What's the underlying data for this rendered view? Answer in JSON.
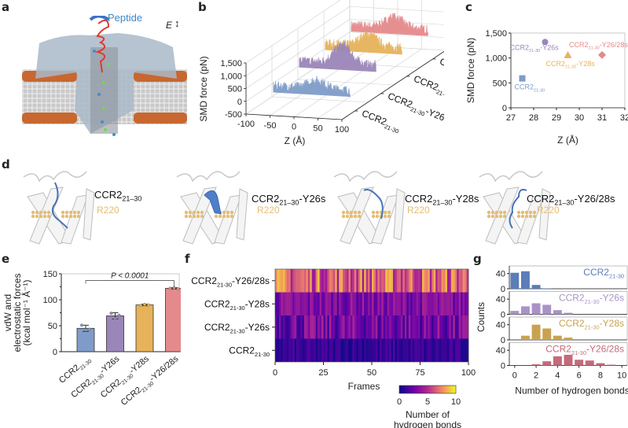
{
  "panels": {
    "a": {
      "letter": "a",
      "peptide_label": "Peptide",
      "field_label": "E",
      "field_icon": "up-down-arrow-icon"
    },
    "b": {
      "letter": "b"
    },
    "c": {
      "letter": "c"
    },
    "d": {
      "letter": "d",
      "structures": [
        {
          "name": "CCR2",
          "sub": "21–30",
          "suffix": "",
          "residue": "R220"
        },
        {
          "name": "CCR2",
          "sub": "21–30",
          "suffix": "-Y26s",
          "residue": "R220"
        },
        {
          "name": "CCR2",
          "sub": "21–30",
          "suffix": "-Y28s",
          "residue": "R220"
        },
        {
          "name": "CCR2",
          "sub": "21–30",
          "suffix": "-Y26/28s",
          "residue": "R220"
        }
      ]
    },
    "e": {
      "letter": "e"
    },
    "f": {
      "letter": "f"
    },
    "g": {
      "letter": "g"
    }
  },
  "colors": {
    "wt": "#7f9cc9",
    "y26s": "#9a86b9",
    "y28s": "#e6b35a",
    "y2628s": "#e48a8c",
    "g_wt": "#5b7db8",
    "g_y26s": "#a993c6",
    "g_y28s": "#c9a24f",
    "g_y2628s": "#c46a7b",
    "residue": "#e5bd72",
    "peptide": "#3f86c6"
  },
  "chart_data": [
    {
      "id": "b",
      "type": "line",
      "title": "",
      "xlabel": "Z (Å)",
      "ylabel": "SMD force (pN)",
      "xlim": [
        -100,
        100
      ],
      "ylim": [
        -500,
        1500
      ],
      "xticks": [
        "-100",
        "-50",
        "0",
        "50",
        "100"
      ],
      "yticks": [
        "-500",
        "0",
        "500",
        "1,000",
        "1,500"
      ],
      "series": [
        {
          "name": "CCR2 21-30",
          "label_main": "CCR2",
          "label_sub": "21-30",
          "label_suffix": "",
          "approx_mean": 300,
          "approx_peak": 600,
          "x_range": [
            -70,
            90
          ]
        },
        {
          "name": "CCR2 21-30-Y26s",
          "label_main": "CCR2",
          "label_sub": "21-30",
          "label_suffix": "-Y26s",
          "approx_mean": 600,
          "approx_peak": 1300,
          "x_range": [
            -70,
            90
          ]
        },
        {
          "name": "CCR2 21-30-Y28s",
          "label_main": "CCR2",
          "label_sub": "21-30",
          "label_suffix": "-Y28s",
          "approx_mean": 600,
          "approx_peak": 1050,
          "x_range": [
            -70,
            90
          ]
        },
        {
          "name": "CCR2 21-30-Y26/28s",
          "label_main": "CCR2",
          "label_sub": "21-30",
          "label_suffix": "-Y26/28s",
          "approx_mean": 650,
          "approx_peak": 1050,
          "x_range": [
            -70,
            90
          ]
        }
      ],
      "style": "3d-waterfall"
    },
    {
      "id": "c",
      "type": "scatter",
      "xlabel": "Z (Å)",
      "ylabel": "SMD force (pN)",
      "xlim": [
        27,
        32
      ],
      "ylim": [
        0,
        1500
      ],
      "xticks": [
        "27",
        "28",
        "29",
        "30",
        "31",
        "32"
      ],
      "yticks": [
        "0",
        "500",
        "1,000",
        "1,500"
      ],
      "points": [
        {
          "name": "CCR2 21-30",
          "main": "CCR2",
          "sub": "21-30",
          "suffix": "",
          "x": 27.5,
          "y": 590,
          "marker": "square",
          "color_key": "wt"
        },
        {
          "name": "CCR2 21-30-Y26s",
          "main": "CCR2",
          "sub": "21-30",
          "suffix": "-Y26s",
          "x": 28.5,
          "y": 1320,
          "marker": "circle",
          "color_key": "y26s"
        },
        {
          "name": "CCR2 21-30-Y28s",
          "main": "CCR2",
          "sub": "21-30",
          "suffix": "-Y28s",
          "x": 29.5,
          "y": 1060,
          "marker": "triangle",
          "color_key": "y28s"
        },
        {
          "name": "CCR2 21-30-Y26/28s",
          "main": "CCR2",
          "sub": "21-30",
          "suffix": "-Y26/28s",
          "x": 31.0,
          "y": 1060,
          "marker": "diamond",
          "color_key": "y2628s"
        }
      ]
    },
    {
      "id": "e",
      "type": "bar",
      "ylabel_lines": [
        "vdW and",
        "electrostatic forces",
        "(kcal mol⁻¹ Å⁻¹)"
      ],
      "ylim": [
        0,
        150
      ],
      "yticks": [
        "0",
        "50",
        "100",
        "150"
      ],
      "categories": [
        {
          "main": "CCR2",
          "sub": "21-30",
          "suffix": ""
        },
        {
          "main": "CCR2",
          "sub": "21-30",
          "suffix": "-Y26s"
        },
        {
          "main": "CCR2",
          "sub": "21-30",
          "suffix": "-Y28s"
        },
        {
          "main": "CCR2",
          "sub": "21-30",
          "suffix": "-Y26/28s"
        }
      ],
      "values": [
        45,
        69,
        90,
        122
      ],
      "errors": [
        6,
        6,
        1.5,
        1.5
      ],
      "points": [
        [
          51,
          42,
          43
        ],
        [
          74,
          64,
          70
        ],
        [
          89,
          91,
          90
        ],
        [
          122,
          123,
          121
        ]
      ],
      "color_keys": [
        "wt",
        "y26s",
        "y28s",
        "y2628s"
      ],
      "annotation": "P < 0.0001"
    },
    {
      "id": "f",
      "type": "heatmap",
      "xlabel": "Frames",
      "xlim": [
        0,
        100
      ],
      "xticks": [
        "0",
        "25",
        "50",
        "75",
        "100"
      ],
      "rows": [
        {
          "main": "CCR2",
          "sub": "21-30",
          "suffix": "-Y26/28s",
          "mean": 6.5,
          "spread": 2.5
        },
        {
          "main": "CCR2",
          "sub": "21-30",
          "suffix": "-Y28s",
          "mean": 3.2,
          "spread": 1.5
        },
        {
          "main": "CCR2",
          "sub": "21-30",
          "suffix": "-Y26s",
          "mean": 2.8,
          "spread": 2.0
        },
        {
          "main": "CCR2",
          "sub": "21-30",
          "suffix": "",
          "mean": 1.0,
          "spread": 1.0
        }
      ],
      "colorbar": {
        "label_lines": [
          "Number of",
          "hydrogen bonds"
        ],
        "ticks": [
          "0",
          "5",
          "10"
        ],
        "range": [
          0,
          10
        ],
        "colormap": "plasma"
      }
    },
    {
      "id": "g",
      "type": "bar",
      "xlabel": "Number of hydrogen bonds",
      "ylabel": "Counts",
      "xlim": [
        -0.5,
        10.5
      ],
      "xticks": [
        "0",
        "2",
        "4",
        "6",
        "8",
        "10"
      ],
      "ylim": [
        0,
        60
      ],
      "yticks": [
        "0",
        "40"
      ],
      "series": [
        {
          "main": "CCR2",
          "sub": "21-30",
          "suffix": "",
          "color_key": "g_wt",
          "bins": [
            0,
            1,
            2,
            3
          ],
          "values": [
            42,
            46,
            10,
            1
          ]
        },
        {
          "main": "CCR2",
          "sub": "21-30",
          "suffix": "-Y26s",
          "color_key": "g_y26s",
          "bins": [
            0,
            1,
            2,
            3,
            4,
            5
          ],
          "values": [
            9,
            21,
            29,
            25,
            11,
            4
          ]
        },
        {
          "main": "CCR2",
          "sub": "21-30",
          "suffix": "-Y28s",
          "color_key": "g_y28s",
          "bins": [
            1,
            2,
            3,
            4,
            5
          ],
          "values": [
            11,
            40,
            30,
            11,
            6
          ]
        },
        {
          "main": "CCR2",
          "sub": "21-30",
          "suffix": "-Y26/28s",
          "color_key": "g_y2628s",
          "bins": [
            2,
            3,
            4,
            5,
            6,
            7,
            8,
            9
          ],
          "values": [
            3,
            11,
            24,
            28,
            15,
            13,
            6,
            2
          ]
        }
      ]
    }
  ]
}
